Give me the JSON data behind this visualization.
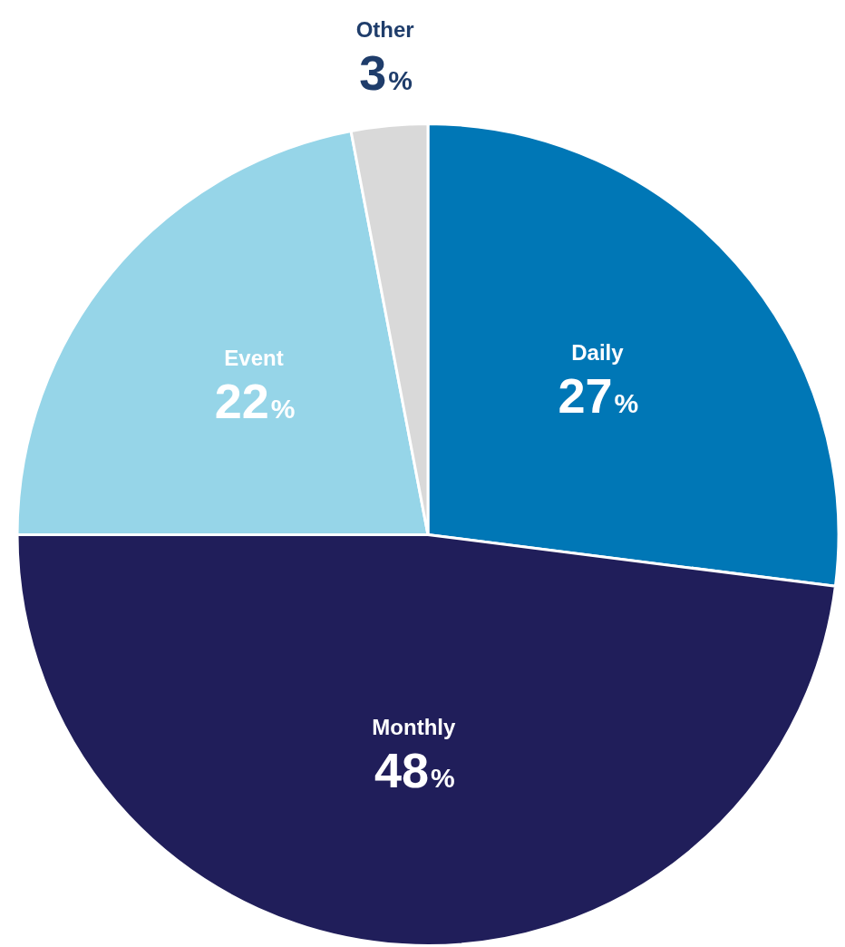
{
  "chart_data": {
    "type": "pie",
    "categories": [
      "Daily",
      "Monthly",
      "Event",
      "Other"
    ],
    "values": [
      27,
      48,
      22,
      3
    ],
    "colors": [
      "#0077b6",
      "#201e5a",
      "#96d5e8",
      "#d9d9d9"
    ],
    "value_labels": [
      "27%",
      "48%",
      "22%",
      "3%"
    ],
    "legend": false
  }
}
